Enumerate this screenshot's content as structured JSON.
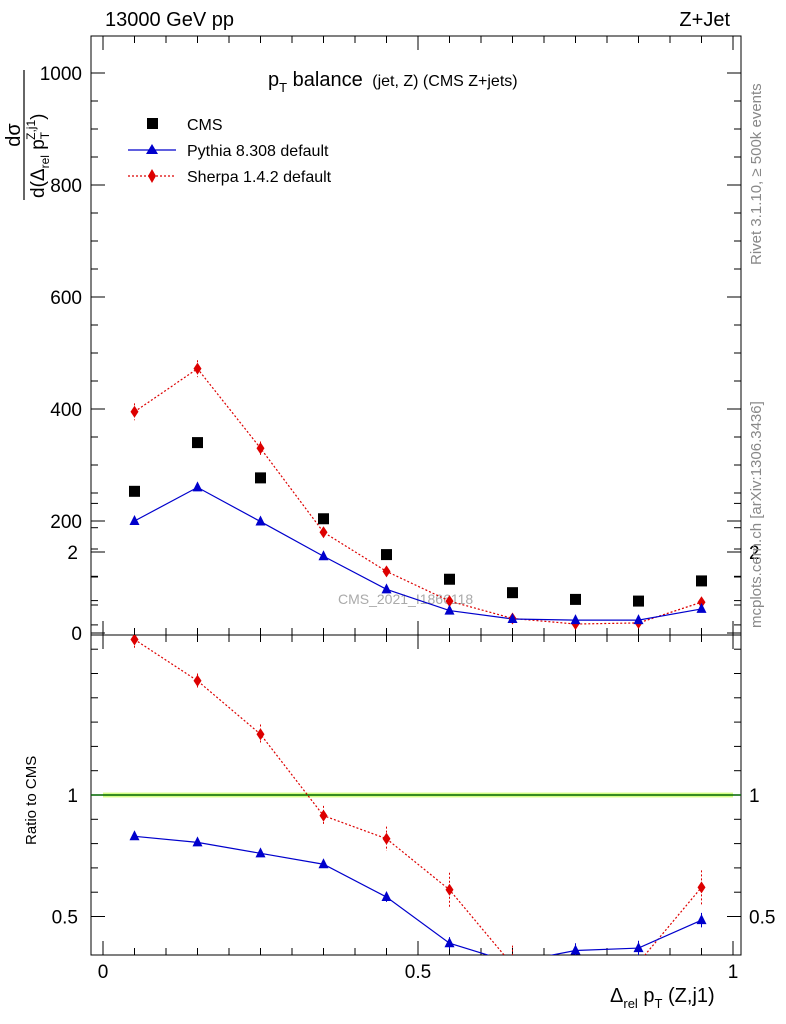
{
  "header": {
    "left": "13000 GeV pp",
    "right": "Z+Jet"
  },
  "title": {
    "main": "p",
    "main_sub": "T",
    "main_rest": " balance",
    "small": "(jet, Z) (CMS Z+jets)"
  },
  "side_labels": {
    "rivet": "Rivet 3.1.10, ≥ 500k events",
    "mcplots": "mcplots.cern.ch [arXiv:1306.3436]"
  },
  "watermark": "CMS_2021_I1866118",
  "y_label_top": {
    "num": "dσ",
    "den_prefix": "d(Δ",
    "den_sub": "rel",
    "den_mid": " p",
    "den_sub2": "T",
    "den_sup": "Z,j1",
    "den_close": ")"
  },
  "y_label_ratio": "Ratio to CMS",
  "x_label": {
    "delta": "Δ",
    "sub": "rel",
    "mid": " p",
    "sub2": "T",
    "rest": " (Z,j1)"
  },
  "legend": [
    {
      "label": "CMS"
    },
    {
      "label": "Pythia 8.308 default"
    },
    {
      "label": "Sherpa 1.4.2 default"
    }
  ],
  "colors": {
    "cms": "#000000",
    "pythia": "#0000cc",
    "sherpa": "#dd0000",
    "ratio_band": "#ccff66",
    "ratio_line": "#006600"
  },
  "chart_data": [
    {
      "type": "scatter",
      "panel": "main",
      "xlim": [
        0,
        1
      ],
      "ylim": [
        0,
        1000
      ],
      "yticks": [
        0,
        200,
        400,
        600,
        800,
        1000
      ],
      "ytick_labels": [
        "0",
        "200",
        "400",
        "600",
        "800",
        "1000"
      ],
      "x": [
        0.05,
        0.15,
        0.25,
        0.35,
        0.45,
        0.55,
        0.65,
        0.75,
        0.85,
        0.95
      ],
      "series": [
        {
          "name": "CMS",
          "marker": "square",
          "values": [
            253,
            340,
            277,
            204,
            140,
            96,
            72,
            60,
            57,
            93
          ],
          "errors": [
            3,
            3,
            3,
            3,
            2,
            2,
            2,
            2,
            2,
            2
          ]
        },
        {
          "name": "Pythia 8.308 default",
          "marker": "triangle",
          "line": "solid",
          "values": [
            200,
            260,
            199,
            137,
            78,
            40,
            25,
            23,
            23,
            43
          ],
          "errors": [
            3,
            4,
            3,
            3,
            2,
            2,
            2,
            3,
            3,
            4
          ]
        },
        {
          "name": "Sherpa 1.4.2 default",
          "marker": "diamond",
          "line": "dotted",
          "values": [
            395,
            472,
            330,
            180,
            110,
            57,
            26,
            16,
            18,
            55
          ],
          "errors": [
            15,
            15,
            12,
            8,
            7,
            5,
            4,
            4,
            4,
            6
          ]
        }
      ]
    },
    {
      "type": "line",
      "panel": "ratio",
      "xlim": [
        0,
        1
      ],
      "ylim": [
        0.35,
        2.3
      ],
      "yticks": [
        0.5,
        1,
        2
      ],
      "ytick_labels": [
        "0.5",
        "1",
        "2"
      ],
      "xticks": [
        0,
        0.5,
        1
      ],
      "xtick_labels": [
        "0",
        "0.5",
        "1"
      ],
      "x": [
        0.05,
        0.15,
        0.25,
        0.35,
        0.45,
        0.55,
        0.65,
        0.75,
        0.85,
        0.95
      ],
      "series": [
        {
          "name": "Pythia 8.308 default",
          "values": [
            0.83,
            0.805,
            0.76,
            0.715,
            0.58,
            0.39,
            0.31,
            0.36,
            0.37,
            0.485
          ],
          "errors": [
            0.01,
            0.01,
            0.012,
            0.014,
            0.02,
            0.025,
            0.03,
            0.03,
            0.03,
            0.03
          ]
        },
        {
          "name": "Sherpa 1.4.2 default",
          "values": [
            1.64,
            1.47,
            1.25,
            0.915,
            0.82,
            0.61,
            0.3,
            0.27,
            0.31,
            0.62
          ],
          "errors": [
            0.04,
            0.03,
            0.04,
            0.04,
            0.05,
            0.07,
            0.08,
            0.08,
            0.08,
            0.07
          ]
        }
      ],
      "reference": {
        "value": 1,
        "band": [
          0.99,
          1.01
        ]
      }
    }
  ]
}
